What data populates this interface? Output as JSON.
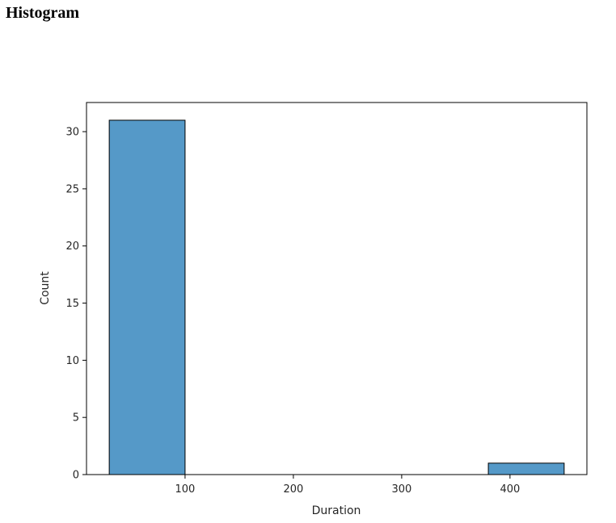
{
  "heading": "Histogram",
  "chart_data": {
    "type": "bar",
    "bins": [
      {
        "start": 30,
        "end": 100,
        "count": 31
      },
      {
        "start": 100,
        "end": 170,
        "count": 0
      },
      {
        "start": 170,
        "end": 240,
        "count": 0
      },
      {
        "start": 240,
        "end": 310,
        "count": 0
      },
      {
        "start": 310,
        "end": 380,
        "count": 0
      },
      {
        "start": 380,
        "end": 450,
        "count": 1
      }
    ],
    "title": "",
    "xlabel": "Duration",
    "ylabel": "Count",
    "xlim": [
      9,
      471
    ],
    "ylim": [
      0,
      32.55
    ],
    "xticks": [
      100,
      200,
      300,
      400
    ],
    "yticks": [
      0,
      5,
      10,
      15,
      20,
      25,
      30
    ],
    "grid": false,
    "bar_color": "#5599c8",
    "edge_color": "#000000"
  }
}
